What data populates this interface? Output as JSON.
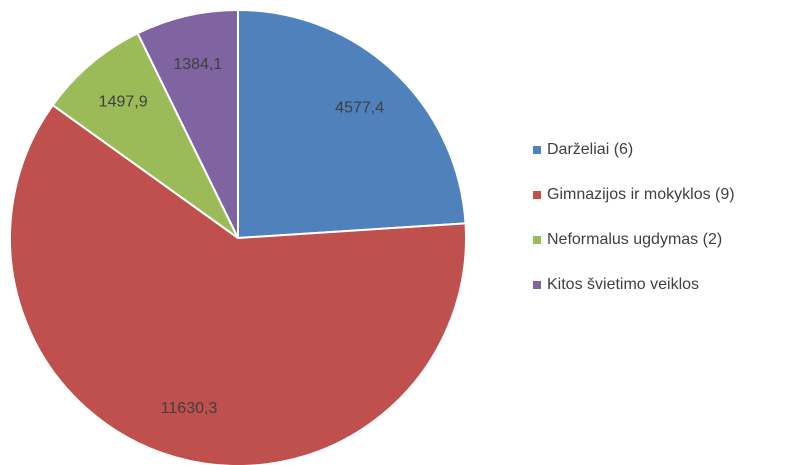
{
  "chart_data": {
    "type": "pie",
    "categories": [
      "Darželiai (6)",
      "Gimnazijos ir mokyklos (9)",
      "Neformalus ugdymas (2)",
      "Kitos švietimo veiklos"
    ],
    "values": [
      4577.4,
      11630.3,
      1497.9,
      1384.1
    ],
    "value_labels": [
      "4577,4",
      "11630,3",
      "1497,9",
      "1384,1"
    ],
    "colors": [
      "#4f81bd",
      "#c0504d",
      "#9bbb59",
      "#8064a2"
    ],
    "legend": "right"
  }
}
